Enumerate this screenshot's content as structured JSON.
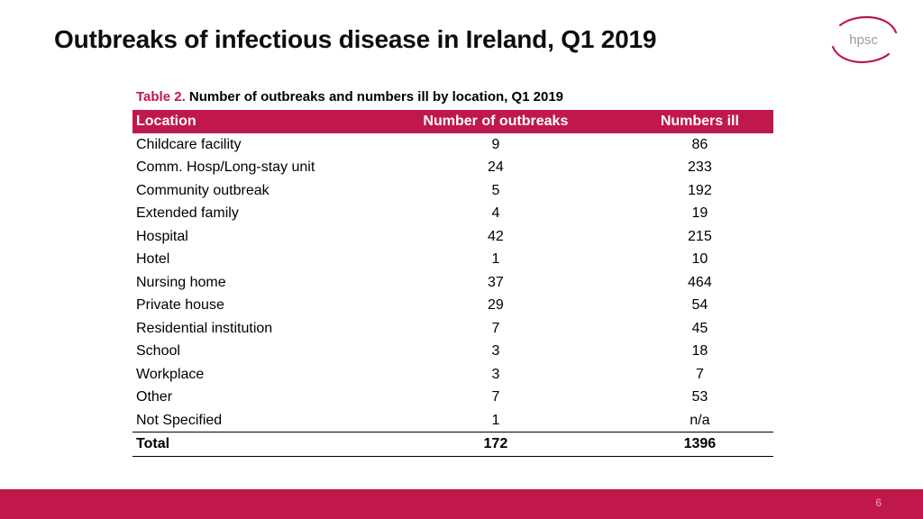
{
  "title": "Outbreaks of infectious disease in Ireland, Q1 2019",
  "logo_text": "hpsc",
  "caption": {
    "number": "Table 2.",
    "text": "Number of outbreaks and numbers ill by location, Q1 2019"
  },
  "table": {
    "headers": [
      "Location",
      "Number of outbreaks",
      "Numbers ill"
    ],
    "rows": [
      [
        "Childcare facility",
        "9",
        "86"
      ],
      [
        "Comm. Hosp/Long-stay unit",
        "24",
        "233"
      ],
      [
        "Community outbreak",
        "5",
        "192"
      ],
      [
        "Extended family",
        "4",
        "19"
      ],
      [
        "Hospital",
        "42",
        "215"
      ],
      [
        "Hotel",
        "1",
        "10"
      ],
      [
        "Nursing home",
        "37",
        "464"
      ],
      [
        "Private house",
        "29",
        "54"
      ],
      [
        "Residential institution",
        "7",
        "45"
      ],
      [
        "School",
        "3",
        "18"
      ],
      [
        "Workplace",
        "3",
        "7"
      ],
      [
        "Other",
        "7",
        "53"
      ],
      [
        "Not Specified",
        "1",
        "n/a"
      ]
    ],
    "total": [
      "Total",
      "172",
      "1396"
    ]
  },
  "page_number": "6",
  "colors": {
    "accent": "#c0184a",
    "logo_grey": "#9b9b9b"
  }
}
